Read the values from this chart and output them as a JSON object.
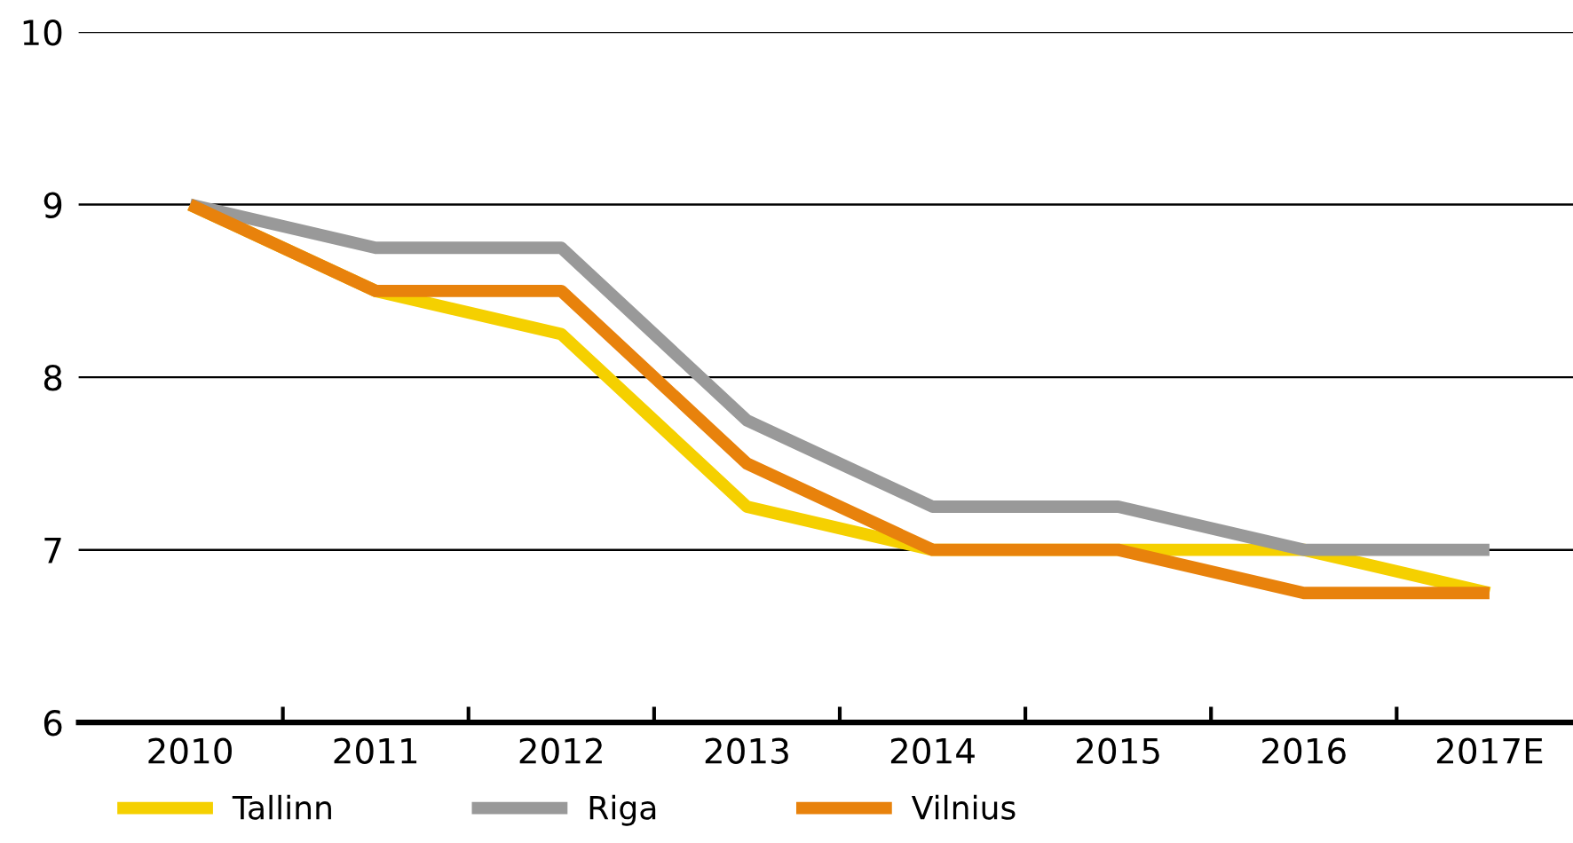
{
  "chart_data": {
    "type": "line",
    "categories": [
      "2010",
      "2011",
      "2012",
      "2013",
      "2014",
      "2015",
      "2016",
      "2017E"
    ],
    "series": [
      {
        "name": "Tallinn",
        "color": "#f5d000",
        "values": [
          9,
          8.5,
          8.25,
          7.25,
          7,
          7,
          7,
          6.75
        ]
      },
      {
        "name": "Riga",
        "color": "#999999",
        "values": [
          9,
          8.75,
          8.75,
          7.75,
          7.25,
          7.25,
          7,
          7
        ]
      },
      {
        "name": "Vilnius",
        "color": "#e8820c",
        "values": [
          9,
          8.5,
          8.5,
          7.5,
          7,
          7,
          6.75,
          6.75
        ]
      }
    ],
    "ylim": [
      6,
      10
    ],
    "yticks": [
      6,
      7,
      8,
      9,
      10
    ],
    "grid": "y",
    "legend": "bottom",
    "marker": "none",
    "line_style": "solid"
  }
}
